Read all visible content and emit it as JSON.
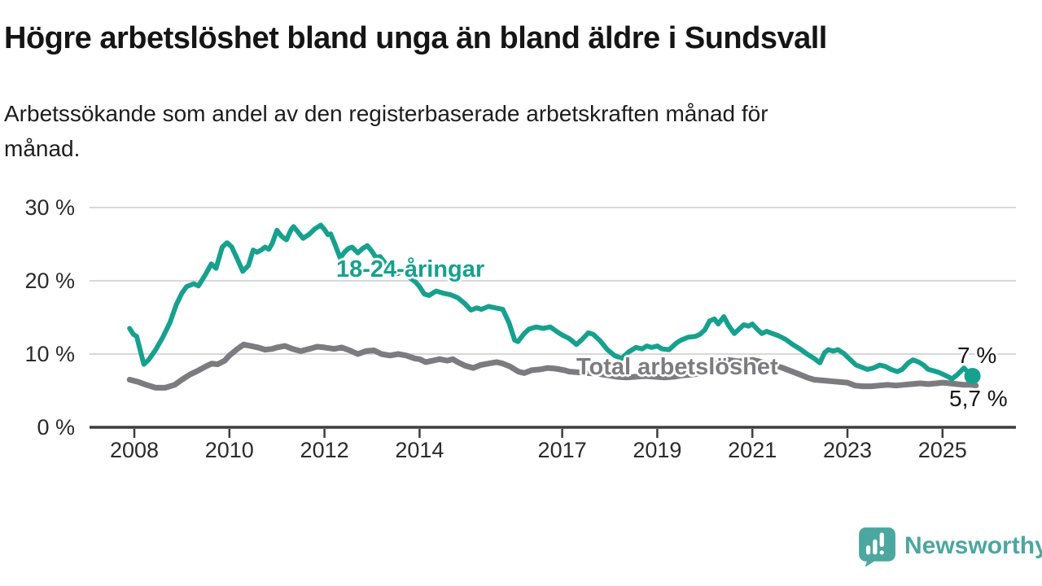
{
  "header": {
    "title": "Högre arbetslöshet bland unga än bland äldre i Sundsvall",
    "subtitle_lines": [
      "Arbetssökande som andel av den registerbaserade arbetskraften månad för",
      "månad."
    ]
  },
  "colors": {
    "background": "#ffffff",
    "youth": "#17a08e",
    "total": "#7c7c80",
    "grid": "#d8d8d8",
    "axis": "#3d3d3d",
    "tick_text": "#2b2b2b",
    "title_text": "#151515",
    "annotation_text": "#151515",
    "logo": "#4ba7a0"
  },
  "branding": {
    "logo_text": "Newsworthy",
    "logo_icon": "speech-bubble-bar-chart-icon"
  },
  "chart_data": {
    "type": "line",
    "title": "Högre arbetslöshet bland unga än bland äldre i Sundsvall",
    "subtitle": "Arbetssökande som andel av den registerbaserade arbetskraften månad för månad.",
    "unit": "%",
    "grid": "horizontal",
    "legend": "inline-labels",
    "x_axis": {
      "ticks": [
        2008,
        2010,
        2012,
        2014,
        2017,
        2019,
        2021,
        2023,
        2025
      ],
      "tick_labels": [
        "2008",
        "2010",
        "2012",
        "2014",
        "2017",
        "2019",
        "2021",
        "2023",
        "2025"
      ],
      "range": [
        2007.85,
        2026.55
      ]
    },
    "y_axis": {
      "ticks": [
        0,
        10,
        20,
        30
      ],
      "tick_labels": [
        "0 %",
        "10 %",
        "20 %",
        "30 %"
      ],
      "range": [
        0,
        30
      ],
      "gridlines": [
        10,
        20,
        30
      ]
    },
    "series": [
      {
        "id": "youth",
        "name": "18-24-åringar",
        "color_key": "youth",
        "stroke_width": 6,
        "end_dot": true,
        "end_label": "7 %",
        "end_value": 7.0,
        "points": [
          [
            2007.9,
            13.5
          ],
          [
            2007.98,
            12.7
          ],
          [
            2008.05,
            12.4
          ],
          [
            2008.2,
            8.6
          ],
          [
            2008.3,
            9.2
          ],
          [
            2008.45,
            10.6
          ],
          [
            2008.6,
            12.3
          ],
          [
            2008.75,
            14.3
          ],
          [
            2008.88,
            16.7
          ],
          [
            2009.0,
            18.3
          ],
          [
            2009.1,
            19.2
          ],
          [
            2009.25,
            19.6
          ],
          [
            2009.35,
            19.3
          ],
          [
            2009.5,
            20.9
          ],
          [
            2009.62,
            22.3
          ],
          [
            2009.72,
            21.7
          ],
          [
            2009.85,
            24.6
          ],
          [
            2009.95,
            25.2
          ],
          [
            2010.05,
            24.6
          ],
          [
            2010.15,
            23.2
          ],
          [
            2010.28,
            21.3
          ],
          [
            2010.4,
            22.1
          ],
          [
            2010.5,
            24.2
          ],
          [
            2010.58,
            23.9
          ],
          [
            2010.67,
            24.2
          ],
          [
            2010.75,
            24.6
          ],
          [
            2010.83,
            24.3
          ],
          [
            2010.9,
            25.1
          ],
          [
            2011.0,
            26.9
          ],
          [
            2011.08,
            26.2
          ],
          [
            2011.15,
            25.8
          ],
          [
            2011.2,
            25.6
          ],
          [
            2011.3,
            27.0
          ],
          [
            2011.35,
            27.4
          ],
          [
            2011.45,
            26.6
          ],
          [
            2011.55,
            25.8
          ],
          [
            2011.67,
            26.3
          ],
          [
            2011.8,
            27.1
          ],
          [
            2011.92,
            27.6
          ],
          [
            2012.0,
            27.0
          ],
          [
            2012.07,
            26.3
          ],
          [
            2012.13,
            26.4
          ],
          [
            2012.22,
            25.0
          ],
          [
            2012.33,
            23.1
          ],
          [
            2012.42,
            23.9
          ],
          [
            2012.5,
            24.4
          ],
          [
            2012.58,
            24.6
          ],
          [
            2012.7,
            23.8
          ],
          [
            2012.8,
            24.4
          ],
          [
            2012.9,
            24.8
          ],
          [
            2013.0,
            24.0
          ],
          [
            2013.08,
            23.2
          ],
          [
            2013.17,
            23.3
          ],
          [
            2013.3,
            22.2
          ],
          [
            2013.42,
            21.5
          ],
          [
            2013.55,
            21.0
          ],
          [
            2013.65,
            21.5
          ],
          [
            2013.8,
            20.4
          ],
          [
            2013.92,
            19.8
          ],
          [
            2014.0,
            19.2
          ],
          [
            2014.1,
            18.2
          ],
          [
            2014.2,
            18.0
          ],
          [
            2014.35,
            18.6
          ],
          [
            2014.5,
            18.3
          ],
          [
            2014.65,
            18.1
          ],
          [
            2014.8,
            17.7
          ],
          [
            2014.95,
            16.9
          ],
          [
            2015.08,
            16.0
          ],
          [
            2015.2,
            16.3
          ],
          [
            2015.3,
            16.1
          ],
          [
            2015.45,
            16.5
          ],
          [
            2015.6,
            16.3
          ],
          [
            2015.75,
            16.1
          ],
          [
            2015.88,
            14.3
          ],
          [
            2016.0,
            11.9
          ],
          [
            2016.07,
            11.7
          ],
          [
            2016.2,
            12.8
          ],
          [
            2016.3,
            13.4
          ],
          [
            2016.45,
            13.7
          ],
          [
            2016.6,
            13.5
          ],
          [
            2016.75,
            13.7
          ],
          [
            2016.88,
            13.1
          ],
          [
            2017.0,
            12.6
          ],
          [
            2017.15,
            12.1
          ],
          [
            2017.3,
            11.3
          ],
          [
            2017.42,
            12.0
          ],
          [
            2017.55,
            12.9
          ],
          [
            2017.65,
            12.7
          ],
          [
            2017.8,
            11.8
          ],
          [
            2017.95,
            10.6
          ],
          [
            2018.1,
            9.8
          ],
          [
            2018.25,
            9.4
          ],
          [
            2018.4,
            10.3
          ],
          [
            2018.55,
            10.9
          ],
          [
            2018.68,
            10.7
          ],
          [
            2018.78,
            11.1
          ],
          [
            2018.88,
            10.9
          ],
          [
            2019.0,
            11.1
          ],
          [
            2019.1,
            10.7
          ],
          [
            2019.25,
            10.6
          ],
          [
            2019.4,
            11.5
          ],
          [
            2019.5,
            11.9
          ],
          [
            2019.65,
            12.3
          ],
          [
            2019.8,
            12.4
          ],
          [
            2019.9,
            12.7
          ],
          [
            2020.0,
            13.3
          ],
          [
            2020.1,
            14.5
          ],
          [
            2020.2,
            14.8
          ],
          [
            2020.28,
            14.1
          ],
          [
            2020.4,
            15.1
          ],
          [
            2020.5,
            13.9
          ],
          [
            2020.62,
            12.8
          ],
          [
            2020.72,
            13.4
          ],
          [
            2020.82,
            14.0
          ],
          [
            2020.92,
            13.8
          ],
          [
            2021.0,
            14.1
          ],
          [
            2021.1,
            13.4
          ],
          [
            2021.2,
            12.8
          ],
          [
            2021.3,
            13.1
          ],
          [
            2021.42,
            12.8
          ],
          [
            2021.55,
            12.5
          ],
          [
            2021.7,
            12.0
          ],
          [
            2021.85,
            11.3
          ],
          [
            2022.0,
            10.7
          ],
          [
            2022.15,
            10.0
          ],
          [
            2022.3,
            9.4
          ],
          [
            2022.42,
            8.8
          ],
          [
            2022.52,
            10.2
          ],
          [
            2022.6,
            10.6
          ],
          [
            2022.7,
            10.4
          ],
          [
            2022.8,
            10.6
          ],
          [
            2022.92,
            10.1
          ],
          [
            2023.05,
            9.3
          ],
          [
            2023.18,
            8.5
          ],
          [
            2023.3,
            8.2
          ],
          [
            2023.42,
            7.9
          ],
          [
            2023.55,
            8.1
          ],
          [
            2023.68,
            8.5
          ],
          [
            2023.8,
            8.3
          ],
          [
            2023.92,
            7.9
          ],
          [
            2024.05,
            7.6
          ],
          [
            2024.15,
            7.9
          ],
          [
            2024.28,
            8.8
          ],
          [
            2024.38,
            9.2
          ],
          [
            2024.5,
            8.9
          ],
          [
            2024.6,
            8.5
          ],
          [
            2024.7,
            7.9
          ],
          [
            2024.82,
            7.7
          ],
          [
            2024.92,
            7.5
          ],
          [
            2025.02,
            7.2
          ],
          [
            2025.12,
            6.9
          ],
          [
            2025.2,
            6.6
          ],
          [
            2025.33,
            7.3
          ],
          [
            2025.45,
            8.1
          ],
          [
            2025.55,
            7.4
          ],
          [
            2025.63,
            7.0
          ]
        ]
      },
      {
        "id": "total",
        "name": "Total arbetslöshet",
        "color_key": "total",
        "stroke_width": 7,
        "end_dot": false,
        "end_label": "5,7 %",
        "end_value": 5.7,
        "points": [
          [
            2007.9,
            6.5
          ],
          [
            2008.08,
            6.2
          ],
          [
            2008.25,
            5.8
          ],
          [
            2008.45,
            5.4
          ],
          [
            2008.65,
            5.4
          ],
          [
            2008.85,
            5.8
          ],
          [
            2009.0,
            6.5
          ],
          [
            2009.17,
            7.2
          ],
          [
            2009.33,
            7.7
          ],
          [
            2009.5,
            8.3
          ],
          [
            2009.63,
            8.7
          ],
          [
            2009.75,
            8.6
          ],
          [
            2009.9,
            9.1
          ],
          [
            2010.0,
            9.8
          ],
          [
            2010.17,
            10.7
          ],
          [
            2010.3,
            11.3
          ],
          [
            2010.45,
            11.1
          ],
          [
            2010.6,
            10.9
          ],
          [
            2010.75,
            10.6
          ],
          [
            2010.9,
            10.7
          ],
          [
            2011.0,
            10.9
          ],
          [
            2011.17,
            11.1
          ],
          [
            2011.33,
            10.7
          ],
          [
            2011.5,
            10.4
          ],
          [
            2011.68,
            10.7
          ],
          [
            2011.85,
            11.0
          ],
          [
            2012.0,
            10.9
          ],
          [
            2012.2,
            10.7
          ],
          [
            2012.36,
            10.9
          ],
          [
            2012.53,
            10.5
          ],
          [
            2012.7,
            10.0
          ],
          [
            2012.87,
            10.4
          ],
          [
            2013.04,
            10.5
          ],
          [
            2013.2,
            10.0
          ],
          [
            2013.38,
            9.8
          ],
          [
            2013.55,
            10.0
          ],
          [
            2013.72,
            9.8
          ],
          [
            2013.9,
            9.4
          ],
          [
            2014.0,
            9.3
          ],
          [
            2014.13,
            8.9
          ],
          [
            2014.28,
            9.1
          ],
          [
            2014.42,
            9.3
          ],
          [
            2014.58,
            9.1
          ],
          [
            2014.7,
            9.3
          ],
          [
            2014.8,
            8.9
          ],
          [
            2014.96,
            8.4
          ],
          [
            2015.13,
            8.1
          ],
          [
            2015.28,
            8.5
          ],
          [
            2015.45,
            8.7
          ],
          [
            2015.62,
            8.9
          ],
          [
            2015.75,
            8.7
          ],
          [
            2015.9,
            8.3
          ],
          [
            2016.08,
            7.6
          ],
          [
            2016.2,
            7.4
          ],
          [
            2016.36,
            7.8
          ],
          [
            2016.53,
            7.9
          ],
          [
            2016.7,
            8.1
          ],
          [
            2016.87,
            8.0
          ],
          [
            2017.04,
            7.8
          ],
          [
            2017.15,
            7.6
          ],
          [
            2017.35,
            7.5
          ],
          [
            2017.55,
            7.4
          ],
          [
            2017.75,
            7.3
          ],
          [
            2017.95,
            7.1
          ],
          [
            2018.15,
            6.9
          ],
          [
            2018.35,
            6.8
          ],
          [
            2018.55,
            6.9
          ],
          [
            2018.75,
            7.0
          ],
          [
            2018.95,
            6.9
          ],
          [
            2019.15,
            6.8
          ],
          [
            2019.35,
            6.9
          ],
          [
            2019.55,
            7.1
          ],
          [
            2019.75,
            7.2
          ],
          [
            2019.9,
            7.4
          ],
          [
            2020.1,
            8.0
          ],
          [
            2020.3,
            8.9
          ],
          [
            2020.5,
            9.2
          ],
          [
            2020.7,
            9.0
          ],
          [
            2020.9,
            9.1
          ],
          [
            2021.0,
            9.2
          ],
          [
            2021.2,
            8.9
          ],
          [
            2021.4,
            8.6
          ],
          [
            2021.6,
            8.2
          ],
          [
            2021.8,
            7.7
          ],
          [
            2022.0,
            7.2
          ],
          [
            2022.15,
            6.8
          ],
          [
            2022.3,
            6.5
          ],
          [
            2022.47,
            6.4
          ],
          [
            2022.64,
            6.3
          ],
          [
            2022.81,
            6.2
          ],
          [
            2023.0,
            6.1
          ],
          [
            2023.16,
            5.7
          ],
          [
            2023.33,
            5.6
          ],
          [
            2023.5,
            5.6
          ],
          [
            2023.67,
            5.7
          ],
          [
            2023.85,
            5.8
          ],
          [
            2024.02,
            5.7
          ],
          [
            2024.18,
            5.8
          ],
          [
            2024.36,
            5.9
          ],
          [
            2024.53,
            6.0
          ],
          [
            2024.7,
            5.9
          ],
          [
            2024.87,
            6.0
          ],
          [
            2025.0,
            6.1
          ],
          [
            2025.15,
            6.0
          ],
          [
            2025.3,
            5.9
          ],
          [
            2025.45,
            5.8
          ],
          [
            2025.6,
            5.8
          ],
          [
            2025.7,
            5.7
          ]
        ]
      }
    ]
  }
}
